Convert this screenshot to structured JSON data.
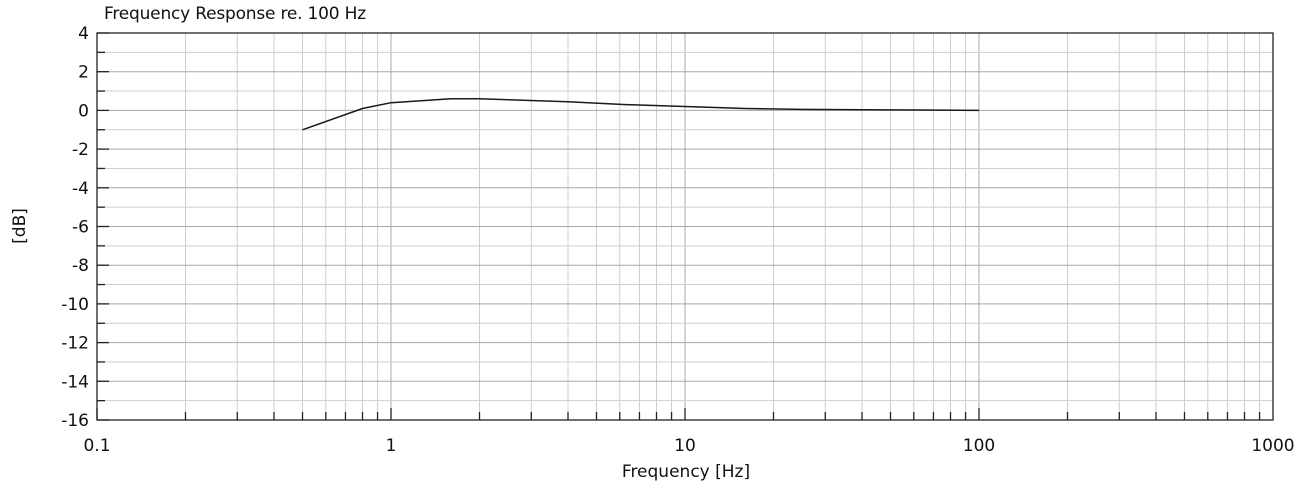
{
  "chart_data": {
    "type": "line",
    "title": "Frequency Response re. 100 Hz",
    "xlabel": "Frequency [Hz]",
    "ylabel": "[dB]",
    "x_scale": "log",
    "xlim": [
      0.1,
      1000
    ],
    "ylim": [
      -16,
      4
    ],
    "x_ticks": [
      {
        "value": 0.1,
        "label": "0.1"
      },
      {
        "value": 1,
        "label": "1"
      },
      {
        "value": 10,
        "label": "10"
      },
      {
        "value": 100,
        "label": "100"
      },
      {
        "value": 1000,
        "label": "1000"
      }
    ],
    "y_ticks": [
      {
        "value": 4,
        "label": "4"
      },
      {
        "value": 2,
        "label": "2"
      },
      {
        "value": 0,
        "label": "0"
      },
      {
        "value": -2,
        "label": "-2"
      },
      {
        "value": -4,
        "label": "-4"
      },
      {
        "value": -6,
        "label": "-6"
      },
      {
        "value": -8,
        "label": "-8"
      },
      {
        "value": -10,
        "label": "-10"
      },
      {
        "value": -12,
        "label": "-12"
      },
      {
        "value": -14,
        "label": "-14"
      },
      {
        "value": -16,
        "label": "-16"
      }
    ],
    "grid": true,
    "legend": "none",
    "series": [
      {
        "color": "#1a1a1a",
        "points": [
          {
            "x": 0.5,
            "y": -1.0
          },
          {
            "x": 0.8,
            "y": 0.1
          },
          {
            "x": 1.0,
            "y": 0.4
          },
          {
            "x": 1.6,
            "y": 0.6
          },
          {
            "x": 2.0,
            "y": 0.6
          },
          {
            "x": 4.0,
            "y": 0.45
          },
          {
            "x": 6.3,
            "y": 0.3
          },
          {
            "x": 10,
            "y": 0.2
          },
          {
            "x": 16,
            "y": 0.1
          },
          {
            "x": 25,
            "y": 0.05
          },
          {
            "x": 40,
            "y": 0.03
          },
          {
            "x": 63,
            "y": 0.02
          },
          {
            "x": 100,
            "y": 0.0
          }
        ]
      }
    ]
  }
}
